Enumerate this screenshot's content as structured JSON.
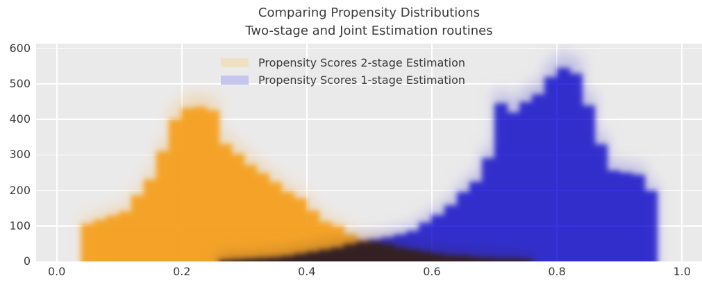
{
  "title": {
    "line1": "Comparing Propensity Distributions",
    "line2": "Two-stage and Joint Estimation routines"
  },
  "legend": {
    "items": [
      {
        "label": "Propensity Scores 2-stage Estimation",
        "swatch_color": "#eee0c2"
      },
      {
        "label": "Propensity Scores 1-stage Estimation",
        "swatch_color": "#c6c5ee"
      }
    ]
  },
  "colors": {
    "plot_background": "#ebeaea",
    "grid": "#ffffff",
    "text": "#3a3a3a",
    "orange_series": "#f5a01e",
    "blue_series": "#342fe3",
    "overlap_dark": "#5f5558"
  },
  "axes": {
    "x_ticks": [
      {
        "label": "0.0",
        "value": 0.0
      },
      {
        "label": "0.2",
        "value": 0.2
      },
      {
        "label": "0.4",
        "value": 0.4
      },
      {
        "label": "0.6",
        "value": 0.6
      },
      {
        "label": "0.8",
        "value": 0.8
      },
      {
        "label": "1.0",
        "value": 1.0
      }
    ],
    "y_ticks": [
      {
        "label": "0",
        "value": 0
      },
      {
        "label": "100",
        "value": 100
      },
      {
        "label": "200",
        "value": 200
      },
      {
        "label": "300",
        "value": 300
      },
      {
        "label": "400",
        "value": 400
      },
      {
        "label": "500",
        "value": 500
      },
      {
        "label": "600",
        "value": 600
      }
    ]
  },
  "chart_data": {
    "type": "bar",
    "subtype": "overlaid-histograms-with-alpha-blur",
    "title": "Comparing Propensity Distributions Two-stage and Joint Estimation routines",
    "xlabel": "",
    "ylabel": "",
    "xlim": [
      -0.033,
      1.032
    ],
    "ylim": [
      0,
      613
    ],
    "grid": true,
    "legend_position": "upper center",
    "bin_width": 0.02,
    "haze": {
      "scale": 1.05,
      "offset": 15
    },
    "series": [
      {
        "name": "Propensity Scores 2-stage Estimation",
        "color": "#f5a01e",
        "bins_start": 0.04,
        "heights": [
          105,
          118,
          128,
          140,
          185,
          230,
          310,
          400,
          432,
          436,
          425,
          330,
          302,
          272,
          248,
          222,
          196,
          178,
          142,
          112,
          100,
          76,
          60,
          55,
          48,
          40,
          33,
          27,
          22,
          18,
          15,
          12,
          10,
          8,
          7,
          6
        ]
      },
      {
        "name": "Propensity Scores 1-stage Estimation",
        "color": "#342fe3",
        "bins_start": 0.26,
        "heights": [
          4,
          5,
          7,
          9,
          12,
          16,
          22,
          28,
          34,
          40,
          48,
          56,
          62,
          68,
          76,
          85,
          110,
          130,
          158,
          196,
          225,
          290,
          445,
          420,
          450,
          470,
          520,
          545,
          530,
          440,
          330,
          255,
          250,
          245,
          200
        ]
      }
    ]
  }
}
